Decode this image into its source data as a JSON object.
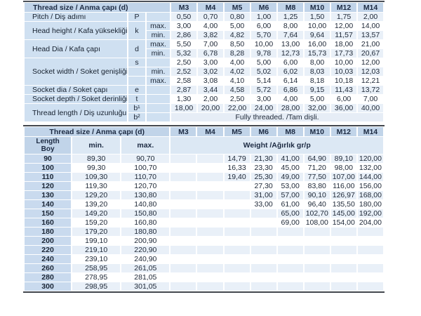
{
  "colors": {
    "header_blue": "#c1d4e9",
    "panel_blue": "#cfe0f1",
    "subheader_blue": "#dce8f4",
    "stripe_blue": "#e9f0f8",
    "length_cell_blue": "#c9daee",
    "border_dark": "#43474e",
    "text": "#1d2736"
  },
  "spec_table": {
    "title": "Thread size / Anma çapı (d)",
    "columns": [
      "M3",
      "M4",
      "M5",
      "M6",
      "M8",
      "M10",
      "M12",
      "M14"
    ],
    "groups": [
      {
        "label": "Pitch / Diş adımı",
        "rows": [
          {
            "sym": "P",
            "sub": "",
            "values": [
              "0,50",
              "0,70",
              "0,80",
              "1,00",
              "1,25",
              "1,50",
              "1,75",
              "2,00"
            ]
          }
        ]
      },
      {
        "label": "Head height / Kafa yüksekliği",
        "symbol": "k",
        "rows": [
          {
            "sub": "max.",
            "values": [
              "3,00",
              "4,00",
              "5,00",
              "6,00",
              "8,00",
              "10,00",
              "12,00",
              "14,00"
            ]
          },
          {
            "sub": "min.",
            "values": [
              "2,86",
              "3,82",
              "4,82",
              "5,70",
              "7,64",
              "9,64",
              "11,57",
              "13,57"
            ]
          }
        ]
      },
      {
        "label": "Head Dia / Kafa çapı",
        "symbol": "d",
        "rows": [
          {
            "sub": "max.",
            "values": [
              "5,50",
              "7,00",
              "8,50",
              "10,00",
              "13,00",
              "16,00",
              "18,00",
              "21,00"
            ]
          },
          {
            "sub": "min.",
            "values": [
              "5,32",
              "6,78",
              "8,28",
              "9,78",
              "12,73",
              "15,73",
              "17,73",
              "20,67"
            ]
          }
        ]
      },
      {
        "label": "Socket width / Soket genişliği",
        "rows": [
          {
            "sym": "s",
            "sub": "",
            "values": [
              "2,50",
              "3,00",
              "4,00",
              "5,00",
              "6,00",
              "8,00",
              "10,00",
              "12,00"
            ]
          },
          {
            "sym": "",
            "sub": "min.",
            "values": [
              "2,52",
              "3,02",
              "4,02",
              "5,02",
              "6,02",
              "8,03",
              "10,03",
              "12,03"
            ]
          },
          {
            "sym": "",
            "sub": "max.",
            "values": [
              "2,58",
              "3,08",
              "4,10",
              "5,14",
              "6,14",
              "8,18",
              "10,18",
              "12,21"
            ]
          }
        ]
      },
      {
        "label": "Socket dia / Soket çapı",
        "rows": [
          {
            "sym": "e",
            "sub": "",
            "values": [
              "2,87",
              "3,44",
              "4,58",
              "5,72",
              "6,86",
              "9,15",
              "11,43",
              "13,72"
            ]
          }
        ]
      },
      {
        "label": "Socket depth / Soket derinliği",
        "rows": [
          {
            "sym": "t",
            "sub": "",
            "values": [
              "1,30",
              "2,00",
              "2,50",
              "3,00",
              "4,00",
              "5,00",
              "6,00",
              "7,00"
            ]
          }
        ]
      },
      {
        "label": "Thread length / Diş uzunluğu",
        "rows": [
          {
            "sym": "b¹",
            "sub": "",
            "values": [
              "18,00",
              "20,00",
              "22,00",
              "24,00",
              "28,00",
              "32,00",
              "36,00",
              "40,00"
            ]
          },
          {
            "sym": "b²",
            "sub": "",
            "span_text": "Fully threaded. /Tam dişli."
          }
        ]
      }
    ]
  },
  "weight_table": {
    "title": "Thread size / Anma çapı (d)",
    "columns": [
      "M3",
      "M4",
      "M5",
      "M6",
      "M8",
      "M10",
      "M12",
      "M14"
    ],
    "length_label_en": "Length",
    "length_label_tr": "Boy",
    "min_header": "min.",
    "max_header": "max.",
    "weight_header": "Weight /Ağırlık gr/p",
    "rows": [
      {
        "length": "90",
        "min": "89,30",
        "max": "90,70",
        "weights": [
          "",
          "",
          "14,79",
          "21,30",
          "41,00",
          "64,90",
          "89,10",
          "120,00"
        ]
      },
      {
        "length": "100",
        "min": "99,30",
        "max": "100,70",
        "weights": [
          "",
          "",
          "16,33",
          "23,30",
          "45,00",
          "71,20",
          "98,00",
          "132,00"
        ]
      },
      {
        "length": "110",
        "min": "109,30",
        "max": "110,70",
        "weights": [
          "",
          "",
          "19,40",
          "25,30",
          "49,00",
          "77,50",
          "107,00",
          "144,00"
        ]
      },
      {
        "length": "120",
        "min": "119,30",
        "max": "120,70",
        "weights": [
          "",
          "",
          "",
          "27,30",
          "53,00",
          "83,80",
          "116,00",
          "156,00"
        ]
      },
      {
        "length": "130",
        "min": "129,20",
        "max": "130,80",
        "weights": [
          "",
          "",
          "",
          "31,00",
          "57,00",
          "90,10",
          "126,97",
          "168,00"
        ]
      },
      {
        "length": "140",
        "min": "139,20",
        "max": "140,80",
        "weights": [
          "",
          "",
          "",
          "33,00",
          "61,00",
          "96,40",
          "135,50",
          "180,00"
        ]
      },
      {
        "length": "150",
        "min": "149,20",
        "max": "150,80",
        "weights": [
          "",
          "",
          "",
          "",
          "65,00",
          "102,70",
          "145,00",
          "192,00"
        ]
      },
      {
        "length": "160",
        "min": "159,20",
        "max": "160,80",
        "weights": [
          "",
          "",
          "",
          "",
          "69,00",
          "108,00",
          "154,00",
          "204,00"
        ]
      },
      {
        "length": "180",
        "min": "179,20",
        "max": "180,80",
        "weights": [
          "",
          "",
          "",
          "",
          "",
          "",
          "",
          ""
        ]
      },
      {
        "length": "200",
        "min": "199,10",
        "max": "200,90",
        "weights": [
          "",
          "",
          "",
          "",
          "",
          "",
          "",
          ""
        ]
      },
      {
        "length": "220",
        "min": "219,10",
        "max": "220,90",
        "weights": [
          "",
          "",
          "",
          "",
          "",
          "",
          "",
          ""
        ]
      },
      {
        "length": "240",
        "min": "239,10",
        "max": "240,90",
        "weights": [
          "",
          "",
          "",
          "",
          "",
          "",
          "",
          ""
        ]
      },
      {
        "length": "260",
        "min": "258,95",
        "max": "261,05",
        "weights": [
          "",
          "",
          "",
          "",
          "",
          "",
          "",
          ""
        ]
      },
      {
        "length": "280",
        "min": "278,95",
        "max": "281,05",
        "weights": [
          "",
          "",
          "",
          "",
          "",
          "",
          "",
          ""
        ]
      },
      {
        "length": "300",
        "min": "298,95",
        "max": "301,05",
        "weights": [
          "",
          "",
          "",
          "",
          "",
          "",
          "",
          ""
        ]
      }
    ]
  }
}
